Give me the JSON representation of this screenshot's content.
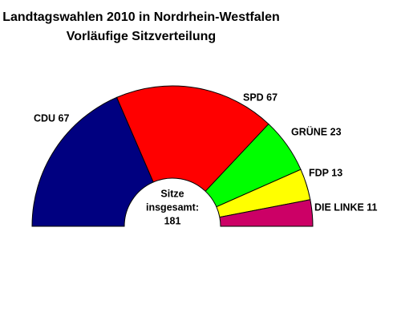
{
  "chart_data": {
    "type": "parliament",
    "title": "Landtagswahlen 2010 in Nordrhein-Westfalen",
    "subtitle": "Vorläufige Sitzverteilung",
    "values": [
      67,
      67,
      23,
      13,
      11
    ],
    "value_labels": [
      "CDU 67",
      "SPD 67",
      "GRÜNE 23",
      "FDP 13",
      "DIE LINKE 11"
    ],
    "colors": [
      "#000080",
      "#ff0000",
      "#00ff00",
      "#ffff00",
      "#cc0066"
    ],
    "center_label": [
      "Sitze",
      "insgesamt:"
    ],
    "total": 181
  }
}
